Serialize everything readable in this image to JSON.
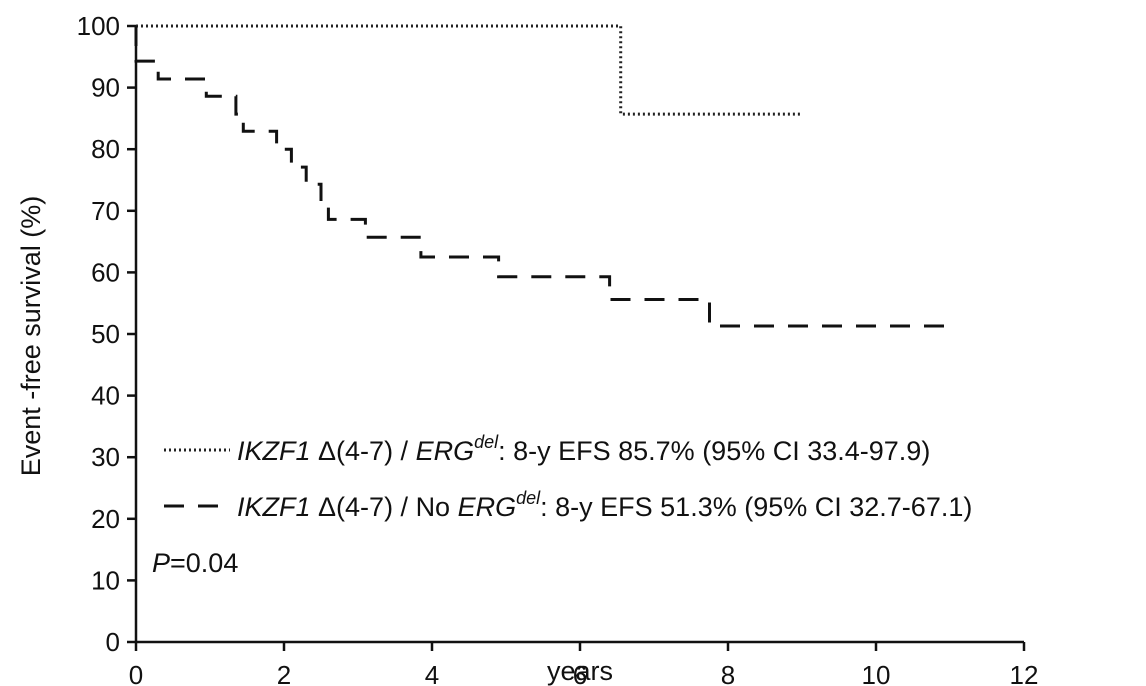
{
  "chart_data": {
    "type": "line",
    "title": "",
    "xlabel": "years",
    "ylabel": "Event -free survival (%)",
    "xlim": [
      0,
      12
    ],
    "ylim": [
      0,
      100
    ],
    "xticks": [
      0,
      2,
      4,
      6,
      8,
      10,
      12
    ],
    "yticks": [
      0,
      10,
      20,
      30,
      40,
      50,
      60,
      70,
      80,
      90,
      100
    ],
    "grid": false,
    "legend_position": "bottom-left",
    "series": [
      {
        "id": "erg_del",
        "style": "dotted",
        "color": "#222222",
        "legend": {
          "gene": "IKZF1",
          "mid": " Δ(4-7) / ",
          "gene2": "ERG",
          "sup": "del",
          "stat": ": 8-y EFS 85.7% (95% CI 33.4-97.9)"
        },
        "steps": [
          [
            0,
            100
          ],
          [
            6.55,
            100
          ],
          [
            6.55,
            85.7
          ],
          [
            9.0,
            85.7
          ]
        ]
      },
      {
        "id": "no_erg_del",
        "style": "dashed",
        "color": "#111111",
        "legend": {
          "gene": "IKZF1",
          "mid": " Δ(4-7) / No ",
          "gene2": "ERG",
          "sup": "del",
          "stat": ": 8-y EFS 51.3% (95% CI 32.7-67.1)"
        },
        "steps": [
          [
            0,
            100
          ],
          [
            0,
            94.3
          ],
          [
            0.3,
            94.3
          ],
          [
            0.3,
            91.4
          ],
          [
            0.95,
            91.4
          ],
          [
            0.95,
            88.6
          ],
          [
            1.35,
            88.6
          ],
          [
            1.35,
            85.7
          ],
          [
            1.45,
            85.7
          ],
          [
            1.45,
            82.9
          ],
          [
            1.9,
            82.9
          ],
          [
            1.9,
            80.0
          ],
          [
            2.1,
            80.0
          ],
          [
            2.1,
            77.1
          ],
          [
            2.3,
            77.1
          ],
          [
            2.3,
            74.3
          ],
          [
            2.5,
            74.3
          ],
          [
            2.5,
            71.4
          ],
          [
            2.6,
            71.4
          ],
          [
            2.6,
            68.6
          ],
          [
            3.1,
            68.6
          ],
          [
            3.1,
            65.7
          ],
          [
            3.85,
            65.7
          ],
          [
            3.85,
            62.5
          ],
          [
            4.9,
            62.5
          ],
          [
            4.9,
            59.3
          ],
          [
            6.4,
            59.3
          ],
          [
            6.4,
            55.6
          ],
          [
            7.75,
            55.6
          ],
          [
            7.75,
            51.3
          ],
          [
            11.0,
            51.3
          ]
        ]
      }
    ],
    "annotation": {
      "p_label": "P",
      "p_value": "=0.04"
    }
  }
}
